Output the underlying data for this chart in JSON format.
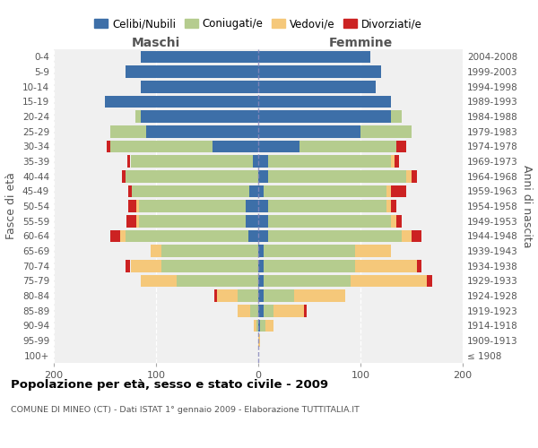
{
  "age_groups": [
    "100+",
    "95-99",
    "90-94",
    "85-89",
    "80-84",
    "75-79",
    "70-74",
    "65-69",
    "60-64",
    "55-59",
    "50-54",
    "45-49",
    "40-44",
    "35-39",
    "30-34",
    "25-29",
    "20-24",
    "15-19",
    "10-14",
    "5-9",
    "0-4"
  ],
  "birth_years": [
    "≤ 1908",
    "1909-1913",
    "1914-1918",
    "1919-1923",
    "1924-1928",
    "1929-1933",
    "1934-1938",
    "1939-1943",
    "1944-1948",
    "1949-1953",
    "1954-1958",
    "1959-1963",
    "1964-1968",
    "1969-1973",
    "1974-1978",
    "1979-1983",
    "1984-1988",
    "1989-1993",
    "1994-1998",
    "1999-2003",
    "2004-2008"
  ],
  "male_celibe": [
    0,
    0,
    0,
    0,
    0,
    0,
    0,
    0,
    10,
    12,
    12,
    9,
    0,
    5,
    45,
    110,
    115,
    150,
    115,
    130,
    115
  ],
  "male_coniugato": [
    0,
    0,
    2,
    8,
    20,
    80,
    95,
    95,
    120,
    105,
    105,
    115,
    130,
    120,
    100,
    35,
    5,
    0,
    0,
    0,
    0
  ],
  "male_vedovo": [
    0,
    0,
    2,
    12,
    20,
    35,
    30,
    10,
    5,
    2,
    2,
    0,
    0,
    0,
    0,
    0,
    0,
    0,
    0,
    0,
    0
  ],
  "male_divorziato": [
    0,
    0,
    0,
    0,
    3,
    0,
    5,
    0,
    10,
    10,
    8,
    3,
    3,
    3,
    3,
    0,
    0,
    0,
    0,
    0,
    0
  ],
  "female_celibe": [
    0,
    0,
    2,
    5,
    5,
    5,
    5,
    5,
    10,
    10,
    10,
    5,
    10,
    10,
    40,
    100,
    130,
    130,
    115,
    120,
    110
  ],
  "female_coniugata": [
    0,
    0,
    5,
    10,
    30,
    85,
    90,
    90,
    130,
    120,
    115,
    120,
    135,
    120,
    95,
    50,
    10,
    0,
    0,
    0,
    0
  ],
  "female_vedova": [
    0,
    2,
    8,
    30,
    50,
    75,
    60,
    35,
    10,
    5,
    5,
    5,
    5,
    3,
    0,
    0,
    0,
    0,
    0,
    0,
    0
  ],
  "female_divorziata": [
    0,
    0,
    0,
    2,
    0,
    5,
    5,
    0,
    10,
    5,
    5,
    15,
    5,
    5,
    10,
    0,
    0,
    0,
    0,
    0,
    0
  ],
  "color_celibe": "#3d6fa8",
  "color_coniugato": "#b5cc8e",
  "color_vedovo": "#f5c87a",
  "color_divorziato": "#cc2222",
  "xlim": 200,
  "title": "Popolazione per età, sesso e stato civile - 2009",
  "subtitle": "COMUNE DI MINEO (CT) - Dati ISTAT 1° gennaio 2009 - Elaborazione TUTTITALIA.IT",
  "ylabel_left": "Fasce di età",
  "ylabel_right": "Anni di nascita",
  "xlabel_left": "Maschi",
  "xlabel_right": "Femmine",
  "bg_color": "#f0f0f0",
  "legend_labels": [
    "Celibi/Nubili",
    "Coniugati/e",
    "Vedovi/e",
    "Divorziati/e"
  ]
}
